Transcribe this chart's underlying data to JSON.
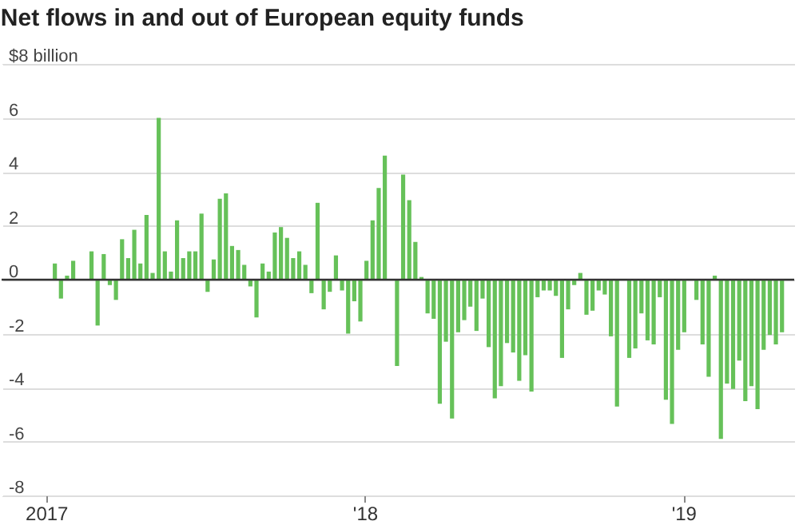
{
  "chart_data": {
    "type": "bar",
    "title": "Net flows in and out of European equity funds",
    "x": [
      "2017-01-11",
      "2017-01-18",
      "2017-01-25",
      "2017-02-01",
      "2017-02-08",
      "2017-02-15",
      "2017-02-22",
      "2017-03-01",
      "2017-03-08",
      "2017-03-15",
      "2017-03-22",
      "2017-03-29",
      "2017-04-05",
      "2017-04-12",
      "2017-04-19",
      "2017-04-26",
      "2017-05-03",
      "2017-05-10",
      "2017-05-17",
      "2017-05-24",
      "2017-05-31",
      "2017-06-07",
      "2017-06-14",
      "2017-06-21",
      "2017-06-28",
      "2017-07-05",
      "2017-07-12",
      "2017-07-19",
      "2017-07-26",
      "2017-08-02",
      "2017-08-09",
      "2017-08-16",
      "2017-08-23",
      "2017-08-30",
      "2017-09-06",
      "2017-09-13",
      "2017-09-20",
      "2017-09-27",
      "2017-10-04",
      "2017-10-11",
      "2017-10-18",
      "2017-10-25",
      "2017-11-01",
      "2017-11-08",
      "2017-11-15",
      "2017-11-22",
      "2017-11-29",
      "2017-12-06",
      "2017-12-13",
      "2017-12-20",
      "2017-12-27",
      "2018-01-03",
      "2018-01-10",
      "2018-01-17",
      "2018-01-24",
      "2018-01-31",
      "2018-02-07",
      "2018-02-14",
      "2018-02-21",
      "2018-02-28",
      "2018-03-07",
      "2018-03-14",
      "2018-03-21",
      "2018-03-28",
      "2018-04-04",
      "2018-04-11",
      "2018-04-18",
      "2018-04-25",
      "2018-05-02",
      "2018-05-09",
      "2018-05-16",
      "2018-05-23",
      "2018-05-30",
      "2018-06-06",
      "2018-06-13",
      "2018-06-20",
      "2018-06-27",
      "2018-07-04",
      "2018-07-11",
      "2018-07-18",
      "2018-07-25",
      "2018-08-01",
      "2018-08-08",
      "2018-08-15",
      "2018-08-22",
      "2018-08-29",
      "2018-09-05",
      "2018-09-12",
      "2018-09-19",
      "2018-09-26",
      "2018-10-03",
      "2018-10-10",
      "2018-10-17",
      "2018-10-24",
      "2018-10-31",
      "2018-11-07",
      "2018-11-14",
      "2018-11-21",
      "2018-11-28",
      "2018-12-05",
      "2018-12-12",
      "2018-12-19",
      "2018-12-26",
      "2019-01-02",
      "2019-01-09",
      "2019-01-16",
      "2019-01-23",
      "2019-01-30",
      "2019-02-06",
      "2019-02-13",
      "2019-02-20",
      "2019-02-27",
      "2019-03-06",
      "2019-03-13",
      "2019-03-20",
      "2019-03-27",
      "2019-04-03",
      "2019-04-10",
      "2019-04-17",
      "2019-04-24"
    ],
    "values": [
      0.6,
      -0.7,
      0.15,
      0.7,
      null,
      null,
      1.05,
      -1.7,
      0.95,
      -0.2,
      -0.75,
      1.5,
      0.8,
      1.85,
      0.6,
      2.4,
      0.25,
      6.0,
      1.05,
      0.3,
      2.2,
      0.8,
      1.05,
      1.05,
      2.45,
      -0.45,
      0.75,
      3.0,
      3.2,
      1.25,
      1.1,
      0.55,
      -0.25,
      -1.4,
      0.6,
      0.3,
      1.75,
      1.95,
      1.55,
      0.8,
      1.05,
      0.55,
      -0.5,
      2.85,
      -1.1,
      -0.45,
      0.9,
      -0.4,
      -2.0,
      -0.8,
      -1.55,
      0.7,
      2.2,
      3.4,
      4.6,
      0,
      -3.2,
      3.9,
      2.95,
      1.4,
      0.1,
      -1.25,
      -1.45,
      -4.6,
      -2.3,
      -5.15,
      -1.95,
      -1.5,
      -1.0,
      -1.9,
      -0.7,
      -2.5,
      -4.4,
      -3.95,
      -2.35,
      -2.7,
      -3.75,
      -2.8,
      -4.15,
      -0.65,
      -0.4,
      -0.4,
      -0.6,
      -2.9,
      -1.1,
      -0.2,
      0.25,
      -1.3,
      -1.15,
      -0.4,
      -0.55,
      -2.1,
      -4.7,
      0,
      -2.9,
      -2.55,
      -1.25,
      -2.25,
      -2.4,
      -0.65,
      -4.45,
      -5.35,
      -2.6,
      -1.95,
      0,
      -0.75,
      -2.4,
      -3.6,
      0.15,
      -5.9,
      -3.85,
      -4.05,
      -3.0,
      -4.5,
      -3.95,
      -4.8,
      -2.6,
      -2.05,
      -2.4,
      -1.95
    ],
    "color": "#66c159",
    "xlim": [
      "2016-11-11",
      "2019-05-08"
    ],
    "xticks": [
      {
        "value": "2017-01-01",
        "label": "2017"
      },
      {
        "value": "2018-01-01",
        "label": "'18"
      },
      {
        "value": "2019-01-01",
        "label": "'19"
      }
    ],
    "ylim": [
      -8,
      8
    ],
    "yticks": [
      {
        "value": 8,
        "label": "$8 billion"
      },
      6,
      4,
      2,
      0,
      -2,
      -4,
      -6,
      -8
    ],
    "grid": "y",
    "ref_lines": [
      {
        "axis": "y",
        "value": 0,
        "color": "#333333"
      }
    ]
  }
}
